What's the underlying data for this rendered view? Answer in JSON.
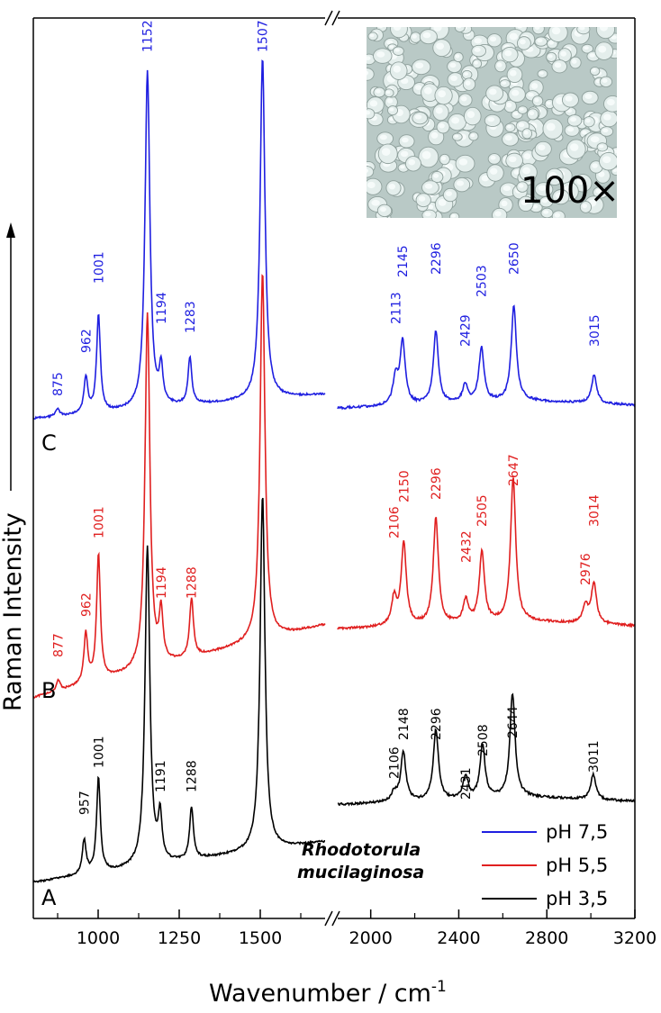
{
  "chart_data": {
    "type": "line",
    "xlabel_main": "Wavenumber / cm",
    "xlabel_sup": "-1",
    "ylabel": "Raman Intensity",
    "segments": [
      {
        "xlim": [
          800,
          1700
        ],
        "ticks": [
          1000,
          1250,
          1500
        ],
        "tick_labels": [
          "1000",
          "1250",
          "1500"
        ]
      },
      {
        "xlim": [
          1850,
          3200
        ],
        "ticks": [
          2000,
          2400,
          2800,
          3200
        ],
        "tick_labels": [
          "2000",
          "2400",
          "2800",
          "3200"
        ]
      }
    ],
    "series": [
      {
        "name": "pH 7,5",
        "letter": "C",
        "color": "#1f1fe0",
        "peaks_low": [
          875,
          962,
          1001,
          1152,
          1194,
          1283,
          1507
        ],
        "peaks_high": [
          2113,
          2145,
          2296,
          2429,
          2503,
          2650,
          3015
        ],
        "peak_labels": [
          "875",
          "962",
          "1001",
          "1152",
          "1194",
          "1283",
          "1507",
          "2113",
          "2145",
          "2296",
          "2429",
          "2503",
          "2650",
          "3015"
        ]
      },
      {
        "name": "pH 5,5",
        "letter": "B",
        "color": "#e01f1f",
        "peaks_low": [
          877,
          962,
          1001,
          1152,
          1194,
          1288,
          1507
        ],
        "peaks_high": [
          2106,
          2150,
          2296,
          2432,
          2505,
          2647,
          2976,
          3014
        ],
        "peak_labels": [
          "877",
          "962",
          "1001",
          "1194",
          "1288",
          "2106",
          "2150",
          "2296",
          "2432",
          "2505",
          "2647",
          "2976",
          "3014"
        ]
      },
      {
        "name": "pH 3,5",
        "letter": "A",
        "color": "#000000",
        "peaks_low": [
          957,
          1001,
          1152,
          1191,
          1288,
          1507
        ],
        "peaks_high": [
          2106,
          2148,
          2296,
          2431,
          2508,
          2644,
          3011
        ],
        "peak_labels": [
          "957",
          "1001",
          "1191",
          "1288",
          "2106",
          "2148",
          "2296",
          "2431",
          "2508",
          "2644",
          "3011"
        ]
      }
    ],
    "species_line1": "Rhodotorula",
    "species_line2": "mucilaginosa",
    "legend_placement": "bottom-right",
    "inset_label": "100×",
    "axis_break": true,
    "grid": false
  }
}
